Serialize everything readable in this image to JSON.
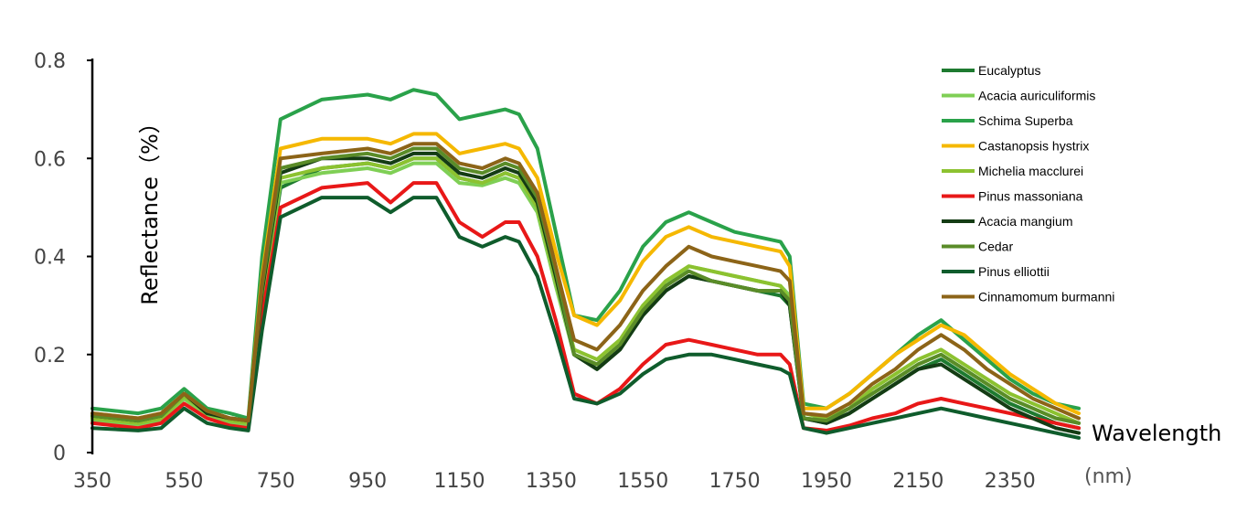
{
  "chart_data": {
    "type": "line",
    "xlabel": "Wavelength",
    "xunit": "(nm)",
    "ylabel": "Reflectance（%）",
    "xlim": [
      350,
      2500
    ],
    "ylim": [
      0,
      0.8
    ],
    "x_ticks": [
      "350",
      "550",
      "750",
      "950",
      "1150",
      "1350",
      "1550",
      "1750",
      "1950",
      "2150",
      "2350"
    ],
    "x_tick_values": [
      350,
      550,
      750,
      950,
      1150,
      1350,
      1550,
      1750,
      1950,
      2150,
      2350
    ],
    "y_ticks": [
      "0",
      "0.2",
      "0.4",
      "0.6",
      "0.8"
    ],
    "y_tick_values": [
      0,
      0.2,
      0.4,
      0.6,
      0.8
    ],
    "grid": false,
    "legend_position": "top-right",
    "x": [
      350,
      450,
      500,
      550,
      600,
      650,
      690,
      720,
      760,
      850,
      950,
      1000,
      1050,
      1100,
      1150,
      1200,
      1250,
      1280,
      1320,
      1360,
      1400,
      1450,
      1500,
      1550,
      1600,
      1650,
      1700,
      1750,
      1800,
      1850,
      1870,
      1900,
      1950,
      2000,
      2050,
      2100,
      2150,
      2200,
      2250,
      2300,
      2350,
      2400,
      2450,
      2500
    ],
    "series": [
      {
        "name": "Eucalyptus",
        "color": "#1e7a30",
        "values": [
          0.07,
          0.06,
          0.07,
          0.12,
          0.08,
          0.065,
          0.06,
          0.3,
          0.54,
          0.58,
          0.59,
          0.58,
          0.6,
          0.6,
          0.56,
          0.55,
          0.57,
          0.56,
          0.5,
          0.35,
          0.2,
          0.17,
          0.21,
          0.28,
          0.33,
          0.36,
          0.35,
          0.34,
          0.33,
          0.32,
          0.3,
          0.07,
          0.06,
          0.08,
          0.11,
          0.14,
          0.17,
          0.19,
          0.16,
          0.13,
          0.1,
          0.08,
          0.06,
          0.05
        ]
      },
      {
        "name": "Acacia auriculiformis",
        "color": "#7fcf55",
        "values": [
          0.065,
          0.055,
          0.065,
          0.11,
          0.075,
          0.06,
          0.055,
          0.31,
          0.55,
          0.57,
          0.58,
          0.57,
          0.59,
          0.59,
          0.55,
          0.545,
          0.56,
          0.55,
          0.49,
          0.34,
          0.2,
          0.18,
          0.22,
          0.29,
          0.34,
          0.38,
          0.37,
          0.36,
          0.35,
          0.34,
          0.32,
          0.07,
          0.065,
          0.09,
          0.12,
          0.15,
          0.18,
          0.2,
          0.17,
          0.14,
          0.11,
          0.09,
          0.07,
          0.06
        ]
      },
      {
        "name": "Schima Superba",
        "color": "#2aa24a",
        "values": [
          0.09,
          0.08,
          0.09,
          0.13,
          0.09,
          0.08,
          0.07,
          0.4,
          0.68,
          0.72,
          0.73,
          0.72,
          0.74,
          0.73,
          0.68,
          0.69,
          0.7,
          0.69,
          0.62,
          0.45,
          0.28,
          0.27,
          0.33,
          0.42,
          0.47,
          0.49,
          0.47,
          0.45,
          0.44,
          0.43,
          0.4,
          0.1,
          0.09,
          0.12,
          0.16,
          0.2,
          0.24,
          0.27,
          0.23,
          0.19,
          0.15,
          0.12,
          0.1,
          0.09
        ]
      },
      {
        "name": "Castanopsis hystrix",
        "color": "#f5b800",
        "values": [
          0.08,
          0.07,
          0.08,
          0.12,
          0.085,
          0.07,
          0.065,
          0.36,
          0.62,
          0.64,
          0.64,
          0.63,
          0.65,
          0.65,
          0.61,
          0.62,
          0.63,
          0.62,
          0.56,
          0.41,
          0.28,
          0.26,
          0.31,
          0.39,
          0.44,
          0.46,
          0.44,
          0.43,
          0.42,
          0.41,
          0.38,
          0.09,
          0.09,
          0.12,
          0.16,
          0.2,
          0.23,
          0.26,
          0.24,
          0.2,
          0.16,
          0.13,
          0.1,
          0.08
        ]
      },
      {
        "name": "Michelia macclurei",
        "color": "#8cc230",
        "values": [
          0.07,
          0.06,
          0.07,
          0.115,
          0.08,
          0.065,
          0.06,
          0.32,
          0.56,
          0.58,
          0.59,
          0.58,
          0.6,
          0.6,
          0.56,
          0.55,
          0.57,
          0.56,
          0.5,
          0.35,
          0.21,
          0.19,
          0.23,
          0.3,
          0.35,
          0.38,
          0.37,
          0.36,
          0.35,
          0.34,
          0.31,
          0.08,
          0.07,
          0.09,
          0.13,
          0.16,
          0.19,
          0.21,
          0.18,
          0.15,
          0.12,
          0.1,
          0.08,
          0.06
        ]
      },
      {
        "name": "Pinus massoniana",
        "color": "#e81818",
        "values": [
          0.06,
          0.05,
          0.06,
          0.1,
          0.07,
          0.055,
          0.05,
          0.28,
          0.5,
          0.54,
          0.55,
          0.51,
          0.55,
          0.55,
          0.47,
          0.44,
          0.47,
          0.47,
          0.4,
          0.27,
          0.12,
          0.1,
          0.13,
          0.18,
          0.22,
          0.23,
          0.22,
          0.21,
          0.2,
          0.2,
          0.18,
          0.05,
          0.045,
          0.055,
          0.07,
          0.08,
          0.1,
          0.11,
          0.1,
          0.09,
          0.08,
          0.07,
          0.06,
          0.05
        ]
      },
      {
        "name": "Acacia mangium",
        "color": "#143c14",
        "values": [
          0.075,
          0.065,
          0.075,
          0.12,
          0.08,
          0.07,
          0.065,
          0.33,
          0.57,
          0.6,
          0.6,
          0.59,
          0.61,
          0.61,
          0.57,
          0.56,
          0.58,
          0.57,
          0.51,
          0.36,
          0.2,
          0.17,
          0.21,
          0.28,
          0.33,
          0.36,
          0.35,
          0.34,
          0.33,
          0.33,
          0.3,
          0.07,
          0.06,
          0.08,
          0.11,
          0.14,
          0.17,
          0.18,
          0.15,
          0.12,
          0.09,
          0.07,
          0.05,
          0.04
        ]
      },
      {
        "name": "Cedar",
        "color": "#5a8c28",
        "values": [
          0.075,
          0.065,
          0.075,
          0.12,
          0.085,
          0.07,
          0.065,
          0.34,
          0.58,
          0.6,
          0.61,
          0.6,
          0.62,
          0.62,
          0.58,
          0.57,
          0.59,
          0.58,
          0.52,
          0.37,
          0.2,
          0.18,
          0.22,
          0.29,
          0.34,
          0.37,
          0.35,
          0.34,
          0.33,
          0.33,
          0.31,
          0.07,
          0.065,
          0.09,
          0.12,
          0.15,
          0.18,
          0.2,
          0.17,
          0.14,
          0.11,
          0.09,
          0.07,
          0.06
        ]
      },
      {
        "name": "Pinus elliottii",
        "color": "#0f5c2c",
        "values": [
          0.05,
          0.045,
          0.05,
          0.09,
          0.06,
          0.05,
          0.045,
          0.25,
          0.48,
          0.52,
          0.52,
          0.49,
          0.52,
          0.52,
          0.44,
          0.42,
          0.44,
          0.43,
          0.36,
          0.24,
          0.11,
          0.1,
          0.12,
          0.16,
          0.19,
          0.2,
          0.2,
          0.19,
          0.18,
          0.17,
          0.16,
          0.05,
          0.04,
          0.05,
          0.06,
          0.07,
          0.08,
          0.09,
          0.08,
          0.07,
          0.06,
          0.05,
          0.04,
          0.03
        ]
      },
      {
        "name": "Cinnamomum burmanni",
        "color": "#8c6418",
        "values": [
          0.08,
          0.07,
          0.08,
          0.12,
          0.085,
          0.07,
          0.065,
          0.35,
          0.6,
          0.61,
          0.62,
          0.61,
          0.63,
          0.63,
          0.59,
          0.58,
          0.6,
          0.59,
          0.53,
          0.38,
          0.23,
          0.21,
          0.26,
          0.33,
          0.38,
          0.42,
          0.4,
          0.39,
          0.38,
          0.37,
          0.35,
          0.08,
          0.075,
          0.1,
          0.14,
          0.17,
          0.21,
          0.24,
          0.21,
          0.17,
          0.14,
          0.11,
          0.09,
          0.07
        ]
      }
    ]
  }
}
